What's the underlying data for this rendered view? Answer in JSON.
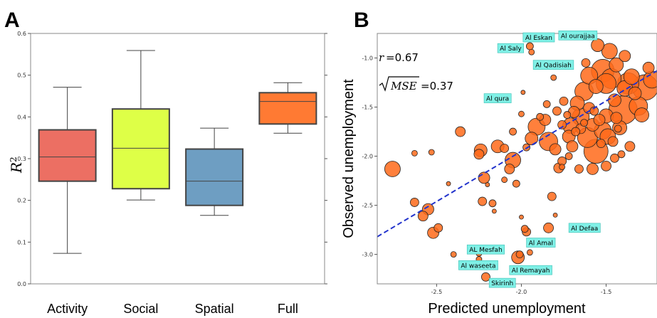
{
  "chart_data": [
    {
      "panel": "A",
      "type": "box",
      "ylabel_base": "R",
      "ylabel_sup": "2",
      "ylim": [
        0.0,
        0.6
      ],
      "yticks": [
        "0.0",
        "0.1",
        "0.2",
        "0.3",
        "0.4",
        "0.5",
        "0.6"
      ],
      "categories": [
        "Activity",
        "Social",
        "Spatial",
        "Full"
      ],
      "colors": [
        "#ec6f63",
        "#deff47",
        "#6e9ec2",
        "#ff7a33"
      ],
      "boxes": [
        {
          "min": 0.073,
          "q1": 0.246,
          "median": 0.304,
          "q3": 0.369,
          "max": 0.471
        },
        {
          "min": 0.201,
          "q1": 0.228,
          "median": 0.325,
          "q3": 0.419,
          "max": 0.559
        },
        {
          "min": 0.164,
          "q1": 0.188,
          "median": 0.246,
          "q3": 0.323,
          "max": 0.373
        },
        {
          "min": 0.361,
          "q1": 0.383,
          "median": 0.437,
          "q3": 0.458,
          "max": 0.482
        }
      ]
    },
    {
      "panel": "B",
      "type": "scatter",
      "xlabel": "Predicted unemployment",
      "ylabel": "Observed unemployment",
      "xlim": [
        -2.85,
        -1.2
      ],
      "ylim": [
        -3.3,
        -0.75
      ],
      "xticks": [
        -2.5,
        -2.0,
        -1.5
      ],
      "xtick_labels": [
        "-2.5",
        "-2.0",
        "-1.5"
      ],
      "yticks": [
        -1.0,
        -1.5,
        -2.0,
        -2.5,
        -3.0
      ],
      "ytick_labels": [
        "-1.0",
        "-1.5",
        "-2.0",
        "-2.5",
        "-3.0"
      ],
      "stat_r_label": "r",
      "stat_r_value": "=0.67",
      "stat_mse_label": "MSE",
      "stat_mse_value": "=0.37",
      "fit_line": {
        "x": [
          -2.85,
          -1.2
        ],
        "y": [
          -2.82,
          -1.13
        ],
        "color": "#2233cc"
      },
      "point_color": "#ff6a1a",
      "points": [
        {
          "x": -2.76,
          "y": -2.13,
          "s": 11
        },
        {
          "x": -2.63,
          "y": -2.47,
          "s": 6
        },
        {
          "x": -2.58,
          "y": -2.61,
          "s": 7
        },
        {
          "x": -2.55,
          "y": -2.54,
          "s": 8
        },
        {
          "x": -2.52,
          "y": -2.78,
          "s": 8
        },
        {
          "x": -2.49,
          "y": -2.73,
          "s": 6
        },
        {
          "x": -2.53,
          "y": -1.96,
          "s": 4
        },
        {
          "x": -2.36,
          "y": -1.75,
          "s": 7
        },
        {
          "x": -2.22,
          "y": -2.22,
          "s": 8
        },
        {
          "x": -2.17,
          "y": -2.48,
          "s": 5
        },
        {
          "x": -2.16,
          "y": -2.56,
          "s": 3
        },
        {
          "x": -2.07,
          "y": -2.13,
          "s": 7
        },
        {
          "x": -2.03,
          "y": -2.28,
          "s": 5
        },
        {
          "x": -1.97,
          "y": -1.91,
          "s": 5
        },
        {
          "x": -1.98,
          "y": -2.74,
          "s": 5
        },
        {
          "x": -1.97,
          "y": -2.77,
          "s": 6
        },
        {
          "x": -2.24,
          "y": -1.94,
          "s": 9
        },
        {
          "x": -2.25,
          "y": -1.98,
          "s": 7
        },
        {
          "x": -2.14,
          "y": -1.9,
          "s": 9
        },
        {
          "x": -2.1,
          "y": -1.92,
          "s": 6
        },
        {
          "x": -2.05,
          "y": -2.04,
          "s": 11
        },
        {
          "x": -1.94,
          "y": -1.82,
          "s": 9
        },
        {
          "x": -1.91,
          "y": -1.7,
          "s": 12
        },
        {
          "x": -1.86,
          "y": -1.63,
          "s": 8
        },
        {
          "x": -1.84,
          "y": -1.85,
          "s": 13
        },
        {
          "x": -1.8,
          "y": -1.93,
          "s": 8
        },
        {
          "x": -1.78,
          "y": -2.12,
          "s": 7
        },
        {
          "x": -1.76,
          "y": -2.05,
          "s": 6
        },
        {
          "x": -1.72,
          "y": -1.8,
          "s": 9
        },
        {
          "x": -1.71,
          "y": -1.69,
          "s": 11
        },
        {
          "x": -1.69,
          "y": -1.55,
          "s": 8
        },
        {
          "x": -1.67,
          "y": -1.46,
          "s": 10
        },
        {
          "x": -1.65,
          "y": -1.6,
          "s": 12
        },
        {
          "x": -1.63,
          "y": -1.34,
          "s": 13
        },
        {
          "x": -1.61,
          "y": -1.81,
          "s": 14
        },
        {
          "x": -1.6,
          "y": -1.51,
          "s": 8
        },
        {
          "x": -1.58,
          "y": -1.68,
          "s": 9
        },
        {
          "x": -1.56,
          "y": -1.95,
          "s": 17
        },
        {
          "x": -1.54,
          "y": -1.63,
          "s": 8
        },
        {
          "x": -1.52,
          "y": -1.74,
          "s": 12
        },
        {
          "x": -1.5,
          "y": -1.59,
          "s": 10
        },
        {
          "x": -1.49,
          "y": -1.8,
          "s": 11
        },
        {
          "x": -1.47,
          "y": -1.21,
          "s": 14
        },
        {
          "x": -1.45,
          "y": -1.43,
          "s": 9
        },
        {
          "x": -1.44,
          "y": -1.61,
          "s": 8
        },
        {
          "x": -1.42,
          "y": -1.71,
          "s": 10
        },
        {
          "x": -1.4,
          "y": -1.53,
          "s": 20
        },
        {
          "x": -1.39,
          "y": -1.31,
          "s": 11
        },
        {
          "x": -1.37,
          "y": -1.26,
          "s": 15
        },
        {
          "x": -1.35,
          "y": -1.19,
          "s": 11
        },
        {
          "x": -1.33,
          "y": -1.36,
          "s": 9
        },
        {
          "x": -1.31,
          "y": -1.49,
          "s": 13
        },
        {
          "x": -1.29,
          "y": -1.58,
          "s": 10
        },
        {
          "x": -1.27,
          "y": -1.3,
          "s": 18
        },
        {
          "x": -1.25,
          "y": -1.1,
          "s": 8
        },
        {
          "x": -1.23,
          "y": -1.22,
          "s": 12
        },
        {
          "x": -1.6,
          "y": -1.18,
          "s": 12
        },
        {
          "x": -1.56,
          "y": -1.29,
          "s": 10
        },
        {
          "x": -1.52,
          "y": -1.13,
          "s": 16
        },
        {
          "x": -1.5,
          "y": -1.26,
          "s": 14
        },
        {
          "x": -1.55,
          "y": -0.87,
          "s": 9
        },
        {
          "x": -1.48,
          "y": -0.93,
          "s": 11
        },
        {
          "x": -1.62,
          "y": -1.05,
          "s": 6
        },
        {
          "x": -1.44,
          "y": -1.07,
          "s": 10
        },
        {
          "x": -1.39,
          "y": -0.98,
          "s": 8
        },
        {
          "x": -1.79,
          "y": -1.54,
          "s": 6
        },
        {
          "x": -1.75,
          "y": -1.44,
          "s": 6
        },
        {
          "x": -1.73,
          "y": -1.58,
          "s": 5
        },
        {
          "x": -1.68,
          "y": -1.75,
          "s": 6
        },
        {
          "x": -1.65,
          "y": -1.72,
          "s": 7
        },
        {
          "x": -1.63,
          "y": -1.66,
          "s": 5
        },
        {
          "x": -1.57,
          "y": -1.54,
          "s": 6
        },
        {
          "x": -1.53,
          "y": -1.87,
          "s": 6
        },
        {
          "x": -1.46,
          "y": -1.85,
          "s": 7
        },
        {
          "x": -1.45,
          "y": -2.02,
          "s": 6
        },
        {
          "x": -1.41,
          "y": -1.98,
          "s": 5
        },
        {
          "x": -1.36,
          "y": -1.9,
          "s": 7
        },
        {
          "x": -1.76,
          "y": -1.68,
          "s": 6
        },
        {
          "x": -1.7,
          "y": -1.9,
          "s": 8
        },
        {
          "x": -1.66,
          "y": -2.13,
          "s": 6
        },
        {
          "x": -1.58,
          "y": -2.13,
          "s": 8
        },
        {
          "x": -1.5,
          "y": -2.1,
          "s": 7
        },
        {
          "x": -1.81,
          "y": -1.2,
          "s": 4
        },
        {
          "x": -1.85,
          "y": -1.47,
          "s": 5
        },
        {
          "x": -1.89,
          "y": -1.6,
          "s": 5
        },
        {
          "x": -2.0,
          "y": -1.57,
          "s": 4
        },
        {
          "x": -1.74,
          "y": -1.06,
          "s": 3
        },
        {
          "x": -1.76,
          "y": -2.11,
          "s": 4
        },
        {
          "x": -2.63,
          "y": -1.97,
          "s": 4
        },
        {
          "x": -2.2,
          "y": -2.29,
          "s": 3
        },
        {
          "x": -2.1,
          "y": -2.24,
          "s": 4
        },
        {
          "x": -2.43,
          "y": -2.28,
          "s": 3
        },
        {
          "x": -2.0,
          "y": -2.62,
          "s": 3
        },
        {
          "x": -1.8,
          "y": -2.6,
          "s": 3
        },
        {
          "x": -1.82,
          "y": -2.41,
          "s": 6
        },
        {
          "x": -1.84,
          "y": -2.73,
          "s": 7
        },
        {
          "x": -1.95,
          "y": -2.98,
          "s": 4
        },
        {
          "x": -2.01,
          "y": -3.0,
          "s": 5
        },
        {
          "x": -2.02,
          "y": -3.03,
          "s": 9
        },
        {
          "x": -2.25,
          "y": -3.05,
          "s": 4
        },
        {
          "x": -2.25,
          "y": -2.99,
          "s": 4
        },
        {
          "x": -2.4,
          "y": -3.0,
          "s": 4
        },
        {
          "x": -2.21,
          "y": -3.23,
          "s": 6
        },
        {
          "x": -2.23,
          "y": -2.46,
          "s": 6
        },
        {
          "x": -2.04,
          "y": -0.91,
          "s": 5
        },
        {
          "x": -1.95,
          "y": -0.88,
          "s": 5
        },
        {
          "x": -1.94,
          "y": -0.94,
          "s": 4
        },
        {
          "x": -1.99,
          "y": -1.35,
          "s": 3
        },
        {
          "x": -2.05,
          "y": -1.75,
          "s": 5
        },
        {
          "x": -1.72,
          "y": -2.0,
          "s": 5
        },
        {
          "x": -1.43,
          "y": -1.72,
          "s": 5
        }
      ],
      "annotations": [
        {
          "text": "Al Eskan",
          "x": -1.99,
          "y": -0.79
        },
        {
          "text": "Al ourajjaa",
          "x": -1.78,
          "y": -0.77
        },
        {
          "text": "Al Saly",
          "x": -2.14,
          "y": -0.9
        },
        {
          "text": "Al Qadisiah",
          "x": -1.93,
          "y": -1.07
        },
        {
          "text": "Al qura",
          "x": -2.22,
          "y": -1.41
        },
        {
          "text": "Al Defaa",
          "x": -1.72,
          "y": -2.73
        },
        {
          "text": "Al Amal",
          "x": -1.97,
          "y": -2.88
        },
        {
          "text": "AL Mesfah",
          "x": -2.32,
          "y": -2.95
        },
        {
          "text": "Al waseeta",
          "x": -2.37,
          "y": -3.11
        },
        {
          "text": "Al Remayah",
          "x": -2.07,
          "y": -3.16
        },
        {
          "text": "Skirinh",
          "x": -2.19,
          "y": -3.29
        }
      ]
    }
  ],
  "labels": {
    "panel_a": "A",
    "panel_b": "B"
  }
}
